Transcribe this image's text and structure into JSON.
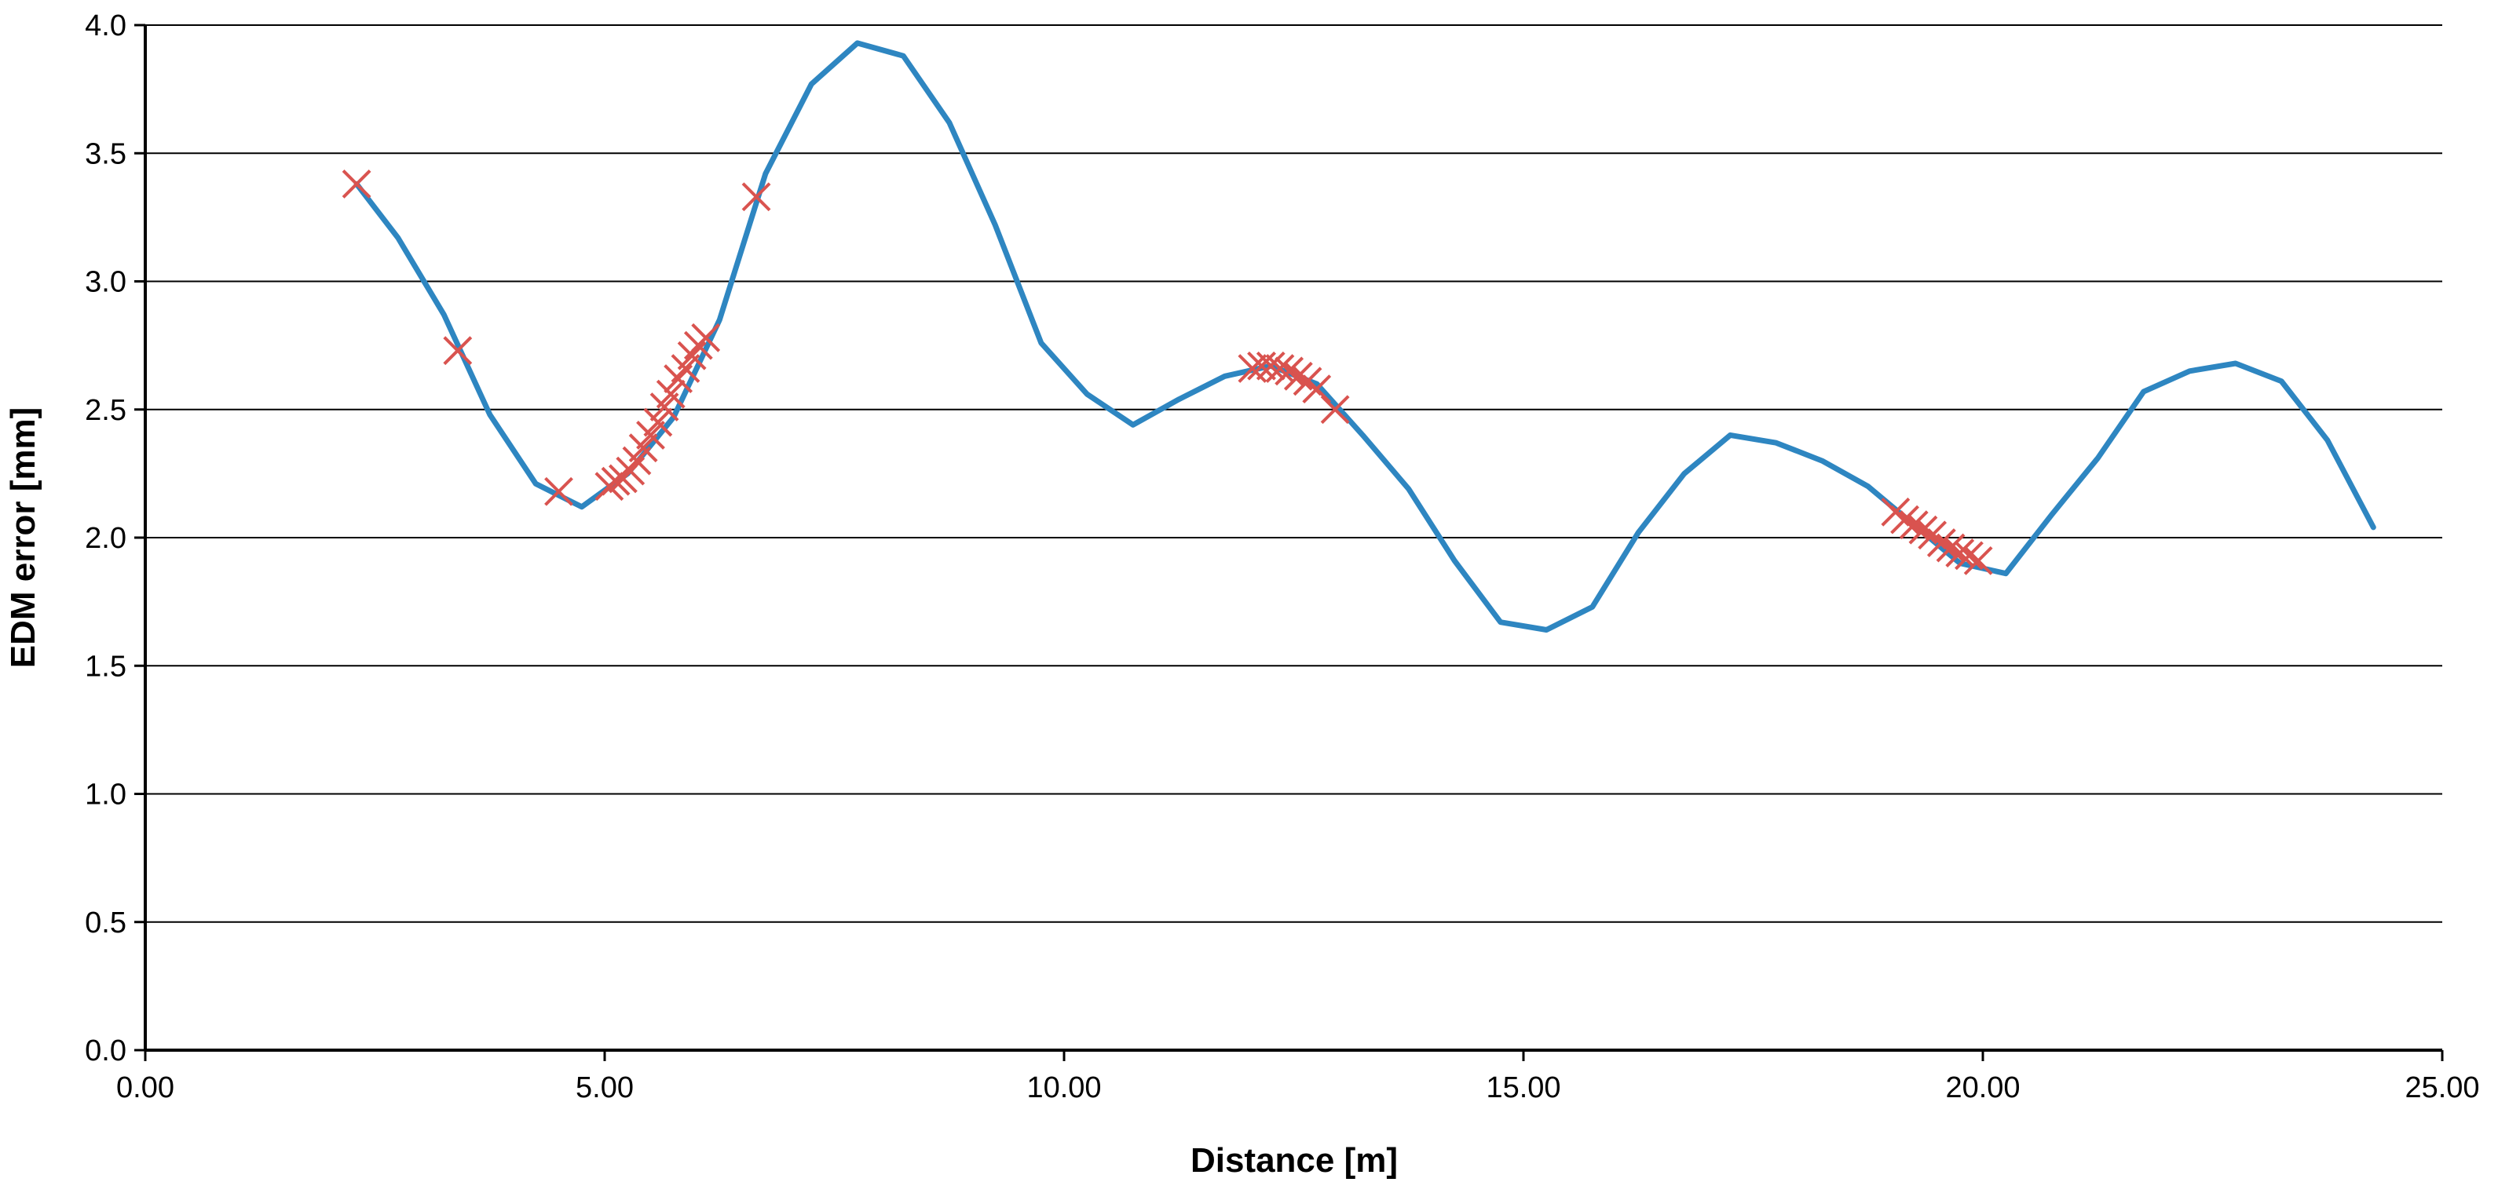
{
  "chart_data": {
    "type": "line",
    "xlabel": "Distance [m]",
    "ylabel": "EDM error [mm]",
    "xlim": [
      0,
      25
    ],
    "ylim": [
      0,
      4
    ],
    "x_ticks": [
      "0.00",
      "5.00",
      "10.00",
      "15.00",
      "20.00",
      "25.00"
    ],
    "y_ticks": [
      "0.0",
      "0.5",
      "1.0",
      "1.5",
      "2.0",
      "2.5",
      "3.0",
      "3.5",
      "4.0"
    ],
    "grid": "horizontal",
    "legend": "none",
    "colors": {
      "line": "#2e86c1",
      "markers": "#d9534f",
      "grid": "#000000"
    },
    "series": [
      {
        "type": "line",
        "x": [
          2.3,
          2.75,
          3.25,
          3.75,
          4.25,
          4.75,
          5.25,
          5.75,
          6.25,
          6.75,
          7.25,
          7.75,
          8.25,
          8.75,
          9.25,
          9.75,
          10.25,
          10.75,
          11.25,
          11.75,
          12.25,
          12.75,
          13.25,
          13.75,
          14.25,
          14.75,
          15.25,
          15.75,
          16.25,
          16.75,
          17.25,
          17.75,
          18.25,
          18.75,
          19.25,
          19.75,
          20.25,
          20.75,
          21.25,
          21.75,
          22.25,
          22.75,
          23.25,
          23.75,
          24.25
        ],
        "y": [
          3.38,
          3.17,
          2.87,
          2.48,
          2.21,
          2.12,
          2.25,
          2.47,
          2.85,
          3.42,
          3.77,
          3.93,
          3.88,
          3.62,
          3.22,
          2.76,
          2.56,
          2.44,
          2.54,
          2.63,
          2.67,
          2.6,
          2.4,
          2.19,
          1.91,
          1.67,
          1.64,
          1.73,
          2.02,
          2.25,
          2.4,
          2.37,
          2.3,
          2.2,
          2.05,
          1.9,
          1.86,
          2.09,
          2.31,
          2.57,
          2.65,
          2.68,
          2.61,
          2.38,
          2.04
        ]
      },
      {
        "type": "scatter",
        "marker": "x",
        "x": [
          2.3,
          3.4,
          4.5,
          5.05,
          5.12,
          5.2,
          5.28,
          5.35,
          5.42,
          5.5,
          5.58,
          5.65,
          5.72,
          5.8,
          5.88,
          5.95,
          6.02,
          6.1,
          6.65,
          12.05,
          12.15,
          12.25,
          12.35,
          12.45,
          12.55,
          12.65,
          12.75,
          12.95,
          19.05,
          19.15,
          19.25,
          19.35,
          19.45,
          19.55,
          19.65,
          19.75,
          19.85,
          19.95
        ],
        "y": [
          3.38,
          2.73,
          2.18,
          2.2,
          2.22,
          2.23,
          2.26,
          2.3,
          2.35,
          2.4,
          2.45,
          2.51,
          2.56,
          2.62,
          2.66,
          2.71,
          2.75,
          2.78,
          3.33,
          2.66,
          2.67,
          2.67,
          2.66,
          2.65,
          2.63,
          2.61,
          2.58,
          2.5,
          2.1,
          2.07,
          2.05,
          2.03,
          2.01,
          1.98,
          1.96,
          1.94,
          1.93,
          1.91
        ]
      }
    ]
  }
}
